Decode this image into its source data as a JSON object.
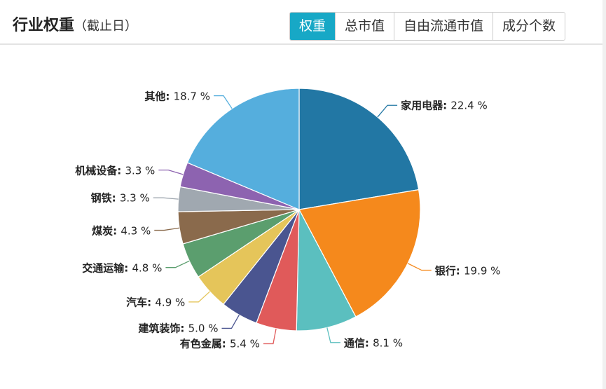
{
  "header": {
    "title": "行业权重",
    "subtitle": "（截止日）",
    "tabs": [
      "权重",
      "总市值",
      "自由流通市值",
      "成分个数"
    ]
  },
  "chart_data": {
    "type": "pie",
    "categories": [
      "家用电器",
      "银行",
      "通信",
      "有色金属",
      "建筑装饰",
      "汽车",
      "交通运输",
      "煤炭",
      "钢铁",
      "机械设备",
      "其他"
    ],
    "values": [
      22.4,
      19.9,
      8.1,
      5.4,
      5.0,
      4.9,
      4.8,
      4.3,
      3.3,
      3.3,
      18.7
    ],
    "value_labels": [
      "22.4 %",
      "19.9 %",
      "8.1 %",
      "5.4 %",
      "5.0 %",
      "4.9 %",
      "4.8 %",
      "4.3 %",
      "3.3 %",
      "3.3 %",
      "18.7 %"
    ],
    "colors": [
      "#2277a4",
      "#f5891c",
      "#5bbfbf",
      "#e05a5a",
      "#4a5590",
      "#e5c55a",
      "#5b9e6e",
      "#8a6a4c",
      "#a0a8b0",
      "#8d63b0",
      "#55aedd"
    ]
  }
}
